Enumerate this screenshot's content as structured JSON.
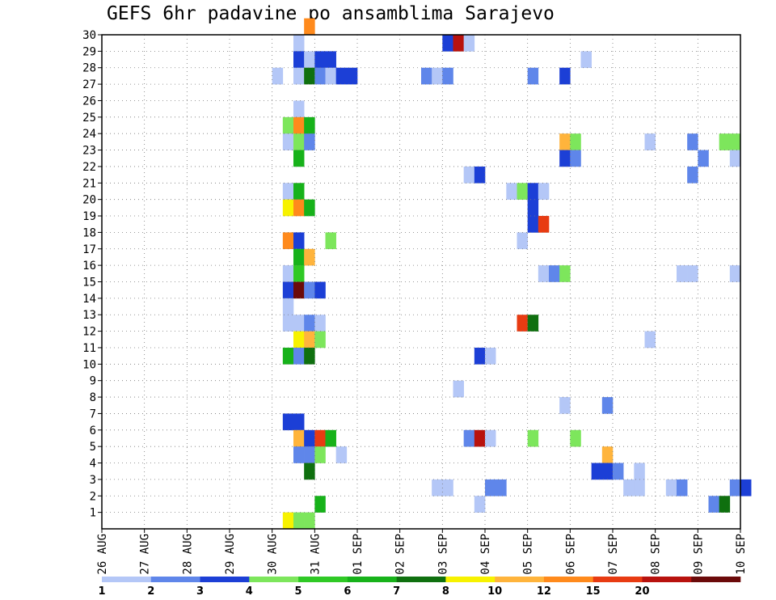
{
  "chart_data": {
    "type": "heatmap",
    "title": "GEFS 6hr padavine po ansamblima Sarajevo",
    "x_tick_labels": [
      "26 AUG",
      "27 AUG",
      "28 AUG",
      "29 AUG",
      "30 AUG",
      "31 AUG",
      "01 SEP",
      "02 SEP",
      "03 SEP",
      "04 SEP",
      "05 SEP",
      "06 SEP",
      "07 SEP",
      "08 SEP",
      "09 SEP",
      "10 SEP"
    ],
    "y_range": [
      0,
      30
    ],
    "y_ticks": [
      1,
      2,
      3,
      4,
      5,
      6,
      7,
      8,
      9,
      10,
      11,
      12,
      13,
      14,
      15,
      16,
      17,
      18,
      19,
      20,
      21,
      22,
      23,
      24,
      25,
      26,
      27,
      28,
      29,
      30
    ],
    "grid": true,
    "colorbar": {
      "labels": [
        "1",
        "2",
        "3",
        "4",
        "5",
        "6",
        "7",
        "8",
        "10",
        "12",
        "15",
        "20"
      ],
      "colors": [
        "#b4c7f7",
        "#5f86ea",
        "#1c3fd6",
        "#7de65c",
        "#2fc925",
        "#17b21a",
        "#0f700f",
        "#f7f200",
        "#ffb43c",
        "#ff8a1c",
        "#e83b12",
        "#b8120e",
        "#6b0a0a"
      ]
    },
    "bins": [
      {
        "level": 1,
        "color": "#b4c7f7"
      },
      {
        "level": 2,
        "color": "#5f86ea"
      },
      {
        "level": 3,
        "color": "#1c3fd6"
      },
      {
        "level": 4,
        "color": "#7de65c"
      },
      {
        "level": 5,
        "color": "#2fc925"
      },
      {
        "level": 6,
        "color": "#17b21a"
      },
      {
        "level": 7,
        "color": "#0f700f"
      },
      {
        "level": 8,
        "color": "#f7f200"
      },
      {
        "level": 10,
        "color": "#ffb43c"
      },
      {
        "level": 12,
        "color": "#ff8a1c"
      },
      {
        "level": 15,
        "color": "#e83b12"
      },
      {
        "level": 20,
        "color": "#b8120e"
      },
      {
        "level": 30,
        "color": "#6b0a0a"
      }
    ],
    "members": [
      {
        "member": 30,
        "cells": [
          [
            4.75,
            12
          ]
        ]
      },
      {
        "member": 29,
        "cells": [
          [
            4.5,
            1
          ],
          [
            8.0,
            3
          ],
          [
            8.25,
            20
          ],
          [
            8.5,
            1
          ]
        ]
      },
      {
        "member": 28,
        "cells": [
          [
            4.5,
            3
          ],
          [
            4.75,
            1
          ],
          [
            5.0,
            3
          ],
          [
            5.25,
            3
          ],
          [
            11.25,
            1
          ]
        ]
      },
      {
        "member": 27,
        "cells": [
          [
            4.0,
            1
          ],
          [
            4.5,
            1
          ],
          [
            4.75,
            7
          ],
          [
            5.0,
            2
          ],
          [
            5.25,
            1
          ],
          [
            5.5,
            3
          ],
          [
            5.75,
            3
          ],
          [
            7.5,
            2
          ],
          [
            7.75,
            1
          ],
          [
            8.0,
            2
          ],
          [
            10.0,
            2
          ],
          [
            10.75,
            3
          ]
        ]
      },
      {
        "member": 25,
        "cells": [
          [
            4.5,
            1
          ]
        ]
      },
      {
        "member": 24,
        "cells": [
          [
            4.25,
            4
          ],
          [
            4.5,
            12
          ],
          [
            4.75,
            6
          ]
        ]
      },
      {
        "member": 23,
        "cells": [
          [
            4.25,
            1
          ],
          [
            4.5,
            4
          ],
          [
            4.75,
            2
          ],
          [
            10.75,
            10
          ],
          [
            11.0,
            4
          ],
          [
            12.75,
            1
          ],
          [
            13.75,
            2
          ],
          [
            14.5,
            4
          ],
          [
            14.75,
            4
          ]
        ]
      },
      {
        "member": 22,
        "cells": [
          [
            4.5,
            6
          ],
          [
            10.75,
            3
          ],
          [
            11.0,
            2
          ],
          [
            14.0,
            2
          ],
          [
            14.75,
            1
          ]
        ]
      },
      {
        "member": 21,
        "cells": [
          [
            8.5,
            1
          ],
          [
            8.75,
            3
          ],
          [
            13.75,
            2
          ]
        ]
      },
      {
        "member": 20,
        "cells": [
          [
            4.25,
            1
          ],
          [
            4.5,
            6
          ],
          [
            9.5,
            1
          ],
          [
            9.75,
            4
          ],
          [
            10.0,
            3
          ],
          [
            10.25,
            1
          ]
        ]
      },
      {
        "member": 19,
        "cells": [
          [
            4.25,
            8
          ],
          [
            4.5,
            12
          ],
          [
            4.75,
            6
          ],
          [
            10.0,
            3
          ]
        ]
      },
      {
        "member": 18,
        "cells": [
          [
            10.0,
            3
          ],
          [
            10.25,
            15
          ]
        ]
      },
      {
        "member": 17,
        "cells": [
          [
            4.25,
            12
          ],
          [
            4.5,
            3
          ],
          [
            5.25,
            4
          ],
          [
            9.75,
            1
          ]
        ]
      },
      {
        "member": 16,
        "cells": [
          [
            4.5,
            6
          ],
          [
            4.75,
            10
          ]
        ]
      },
      {
        "member": 15,
        "cells": [
          [
            4.25,
            1
          ],
          [
            4.5,
            5
          ],
          [
            10.25,
            1
          ],
          [
            10.5,
            2
          ],
          [
            10.75,
            4
          ],
          [
            13.5,
            1
          ],
          [
            13.75,
            1
          ],
          [
            14.75,
            1
          ]
        ]
      },
      {
        "member": 14,
        "cells": [
          [
            4.25,
            3
          ],
          [
            4.5,
            30
          ],
          [
            4.75,
            2
          ],
          [
            5.0,
            3
          ]
        ]
      },
      {
        "member": 13,
        "cells": [
          [
            4.25,
            1
          ]
        ]
      },
      {
        "member": 12,
        "cells": [
          [
            4.25,
            1
          ],
          [
            4.5,
            1
          ],
          [
            4.75,
            2
          ],
          [
            5.0,
            1
          ],
          [
            9.75,
            15
          ],
          [
            10.0,
            7
          ]
        ]
      },
      {
        "member": 11,
        "cells": [
          [
            4.5,
            8
          ],
          [
            4.75,
            10
          ],
          [
            5.0,
            4
          ],
          [
            12.75,
            1
          ]
        ]
      },
      {
        "member": 10,
        "cells": [
          [
            4.25,
            6
          ],
          [
            4.5,
            2
          ],
          [
            4.75,
            7
          ],
          [
            8.75,
            3
          ],
          [
            9.0,
            1
          ]
        ]
      },
      {
        "member": 8,
        "cells": [
          [
            8.25,
            1
          ]
        ]
      },
      {
        "member": 7,
        "cells": [
          [
            10.75,
            1
          ],
          [
            11.75,
            2
          ]
        ]
      },
      {
        "member": 6,
        "cells": [
          [
            4.25,
            3
          ],
          [
            4.5,
            3
          ]
        ]
      },
      {
        "member": 5,
        "cells": [
          [
            4.5,
            10
          ],
          [
            4.75,
            3
          ],
          [
            5.0,
            15
          ],
          [
            5.25,
            6
          ],
          [
            8.5,
            2
          ],
          [
            8.75,
            20
          ],
          [
            9.0,
            1
          ],
          [
            10.0,
            4
          ],
          [
            11.0,
            4
          ]
        ]
      },
      {
        "member": 4,
        "cells": [
          [
            4.5,
            2
          ],
          [
            4.75,
            2
          ],
          [
            5.0,
            4
          ],
          [
            5.5,
            1
          ],
          [
            11.75,
            10
          ]
        ]
      },
      {
        "member": 3,
        "cells": [
          [
            4.75,
            7
          ],
          [
            11.5,
            3
          ],
          [
            11.75,
            3
          ],
          [
            12.0,
            2
          ],
          [
            12.5,
            1
          ]
        ]
      },
      {
        "member": 2,
        "cells": [
          [
            7.75,
            1
          ],
          [
            8.0,
            1
          ],
          [
            9.0,
            2
          ],
          [
            9.25,
            2
          ],
          [
            12.25,
            1
          ],
          [
            12.5,
            1
          ],
          [
            13.25,
            1
          ],
          [
            13.5,
            2
          ],
          [
            14.75,
            2
          ],
          [
            15.0,
            3
          ]
        ]
      },
      {
        "member": 1,
        "cells": [
          [
            5.0,
            6
          ],
          [
            8.75,
            1
          ],
          [
            14.25,
            2
          ],
          [
            14.5,
            7
          ]
        ]
      },
      {
        "member": 0,
        "cells": [
          [
            4.25,
            8
          ],
          [
            4.5,
            4
          ],
          [
            4.75,
            4
          ]
        ]
      }
    ]
  }
}
